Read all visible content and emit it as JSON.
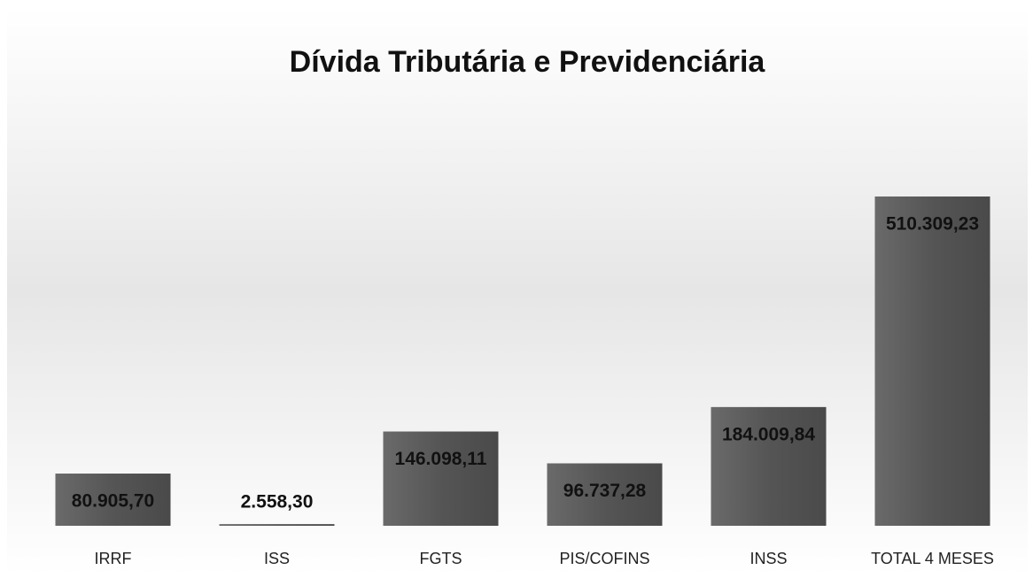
{
  "chart_data": {
    "type": "bar",
    "title": "Dívida Tributária e Previdenciária",
    "categories": [
      "IRRF",
      "ISS",
      "FGTS",
      "PIS/COFINS",
      "INSS",
      "TOTAL 4 MESES"
    ],
    "values": [
      80905.7,
      2558.3,
      146098.11,
      96737.28,
      184009.84,
      510309.23
    ],
    "value_labels": [
      "80.905,70",
      "2.558,30",
      "146.098,11",
      "96.737,28",
      "184.009,84",
      "510.309,23"
    ],
    "color": "#5a5a5a"
  }
}
